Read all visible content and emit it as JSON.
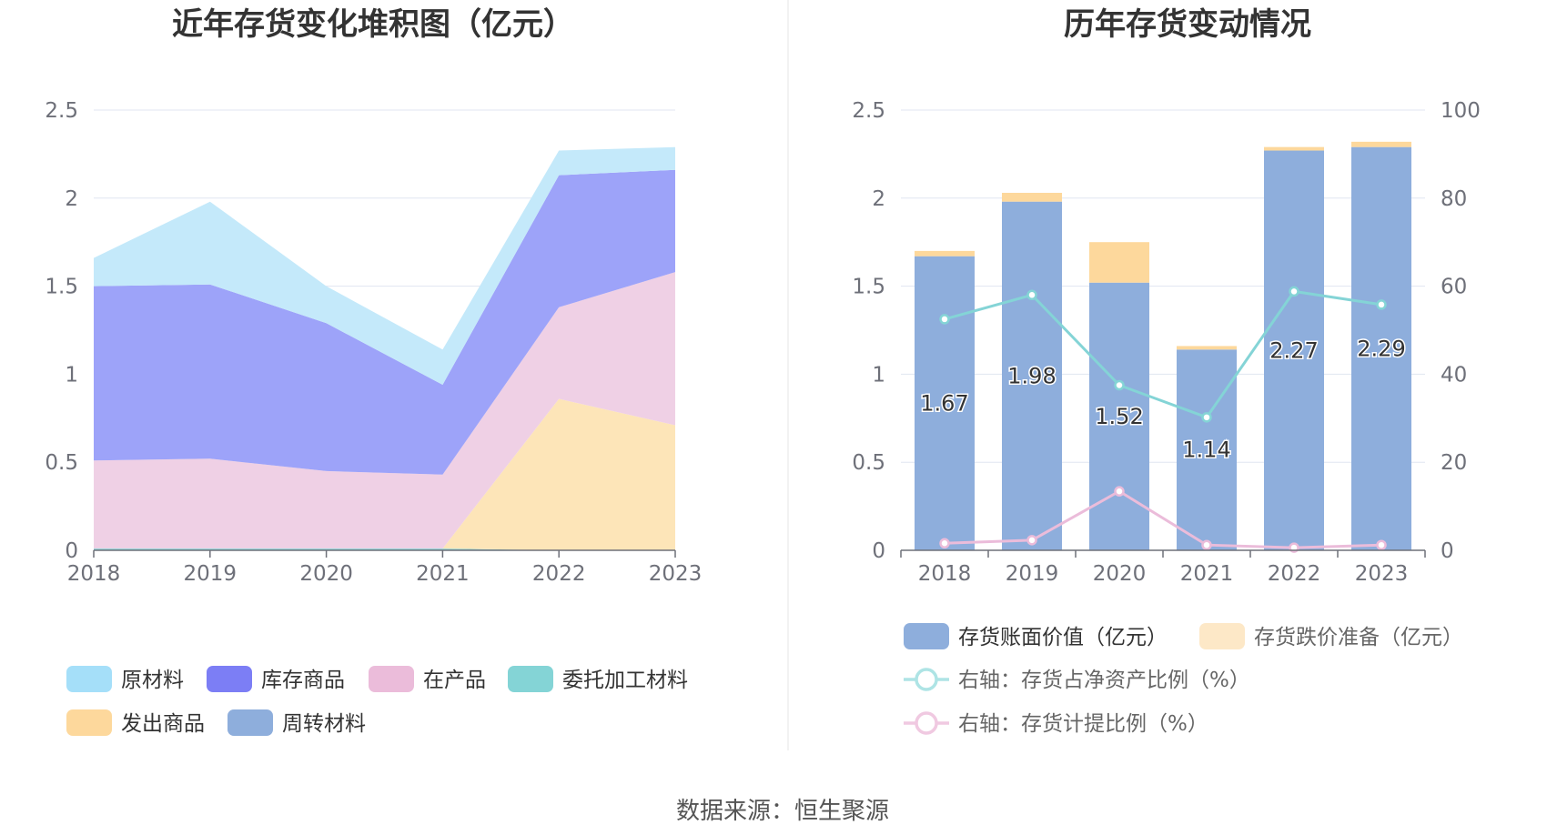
{
  "source": "数据来源：恒生聚源",
  "chart_data": [
    {
      "type": "area",
      "stacked": true,
      "title": "近年存货变化堆积图（亿元）",
      "categories": [
        "2018",
        "2019",
        "2020",
        "2021",
        "2022",
        "2023"
      ],
      "ylim": [
        0,
        2.5
      ],
      "yticks": [
        "0",
        "0.5",
        "1",
        "1.5",
        "2",
        "2.5"
      ],
      "legend_position": "bottom",
      "series": [
        {
          "name": "周转材料",
          "color": "#8eaedc",
          "values": [
            0.0,
            0.0,
            0.0,
            0.0,
            0.0,
            0.0
          ]
        },
        {
          "name": "委托加工材料",
          "color": "#84d4d6",
          "values": [
            0.01,
            0.01,
            0.01,
            0.01,
            0.0,
            0.0
          ]
        },
        {
          "name": "发出商品",
          "color": "#fde5b8",
          "values": [
            0.0,
            0.0,
            0.0,
            0.0,
            0.86,
            0.71
          ]
        },
        {
          "name": "在产品",
          "color": "#efd0e5",
          "values": [
            0.5,
            0.51,
            0.44,
            0.42,
            0.52,
            0.87
          ]
        },
        {
          "name": "库存商品",
          "color": "#9da3f9",
          "values": [
            0.99,
            0.99,
            0.84,
            0.51,
            0.75,
            0.58
          ]
        },
        {
          "name": "原材料",
          "color": "#c4e9fa",
          "values": [
            0.16,
            0.47,
            0.21,
            0.2,
            0.14,
            0.13
          ]
        }
      ],
      "legend": [
        {
          "name": "原材料",
          "color": "#a5dff9"
        },
        {
          "name": "库存商品",
          "color": "#7c7ef5"
        },
        {
          "name": "在产品",
          "color": "#ebbcda"
        },
        {
          "name": "委托加工材料",
          "color": "#84d4d6"
        },
        {
          "name": "发出商品",
          "color": "#fdd89c"
        },
        {
          "name": "周转材料",
          "color": "#8eaedc"
        }
      ]
    },
    {
      "type": "bar",
      "stacked": true,
      "title": "历年存货变动情况",
      "categories": [
        "2018",
        "2019",
        "2020",
        "2021",
        "2022",
        "2023"
      ],
      "ylim": [
        0,
        2.5
      ],
      "yticks": [
        "0",
        "0.5",
        "1",
        "1.5",
        "2",
        "2.5"
      ],
      "y2lim": [
        0,
        100
      ],
      "y2ticks": [
        "0",
        "20",
        "40",
        "60",
        "80",
        "100"
      ],
      "legend_position": "bottom",
      "series": [
        {
          "name": "存货账面价值（亿元）",
          "color": "#8eaedc",
          "axis": "left",
          "kind": "bar",
          "values": [
            1.67,
            1.98,
            1.52,
            1.14,
            2.27,
            2.29
          ],
          "labels": [
            "1.67",
            "1.98",
            "1.52",
            "1.14",
            "2.27",
            "2.29"
          ]
        },
        {
          "name": "存货跌价准备（亿元）",
          "color": "#fdd89c",
          "axis": "left",
          "kind": "bar",
          "values": [
            0.03,
            0.05,
            0.23,
            0.02,
            0.02,
            0.03
          ]
        },
        {
          "name": "右轴：存货占净资产比例（%）",
          "color": "#84d4d6",
          "axis": "right",
          "kind": "line",
          "values": [
            52.5,
            58.0,
            37.5,
            30.2,
            58.8,
            55.8
          ]
        },
        {
          "name": "右轴：存货计提比例（%）",
          "color": "#ebbcda",
          "axis": "right",
          "kind": "line",
          "values": [
            1.6,
            2.3,
            13.4,
            1.2,
            0.6,
            1.2
          ]
        }
      ],
      "legend": [
        {
          "name": "存货账面价值（亿元）",
          "color": "#8eaedc",
          "kind": "bar"
        },
        {
          "name": "存货跌价准备（亿元）",
          "color": "#fde8c7",
          "kind": "bar"
        },
        {
          "name": "右轴：存货占净资产比例（%）",
          "color": "#aee4e5",
          "kind": "line"
        },
        {
          "name": "右轴：存货计提比例（%）",
          "color": "#f0c9e1",
          "kind": "line"
        }
      ]
    }
  ]
}
